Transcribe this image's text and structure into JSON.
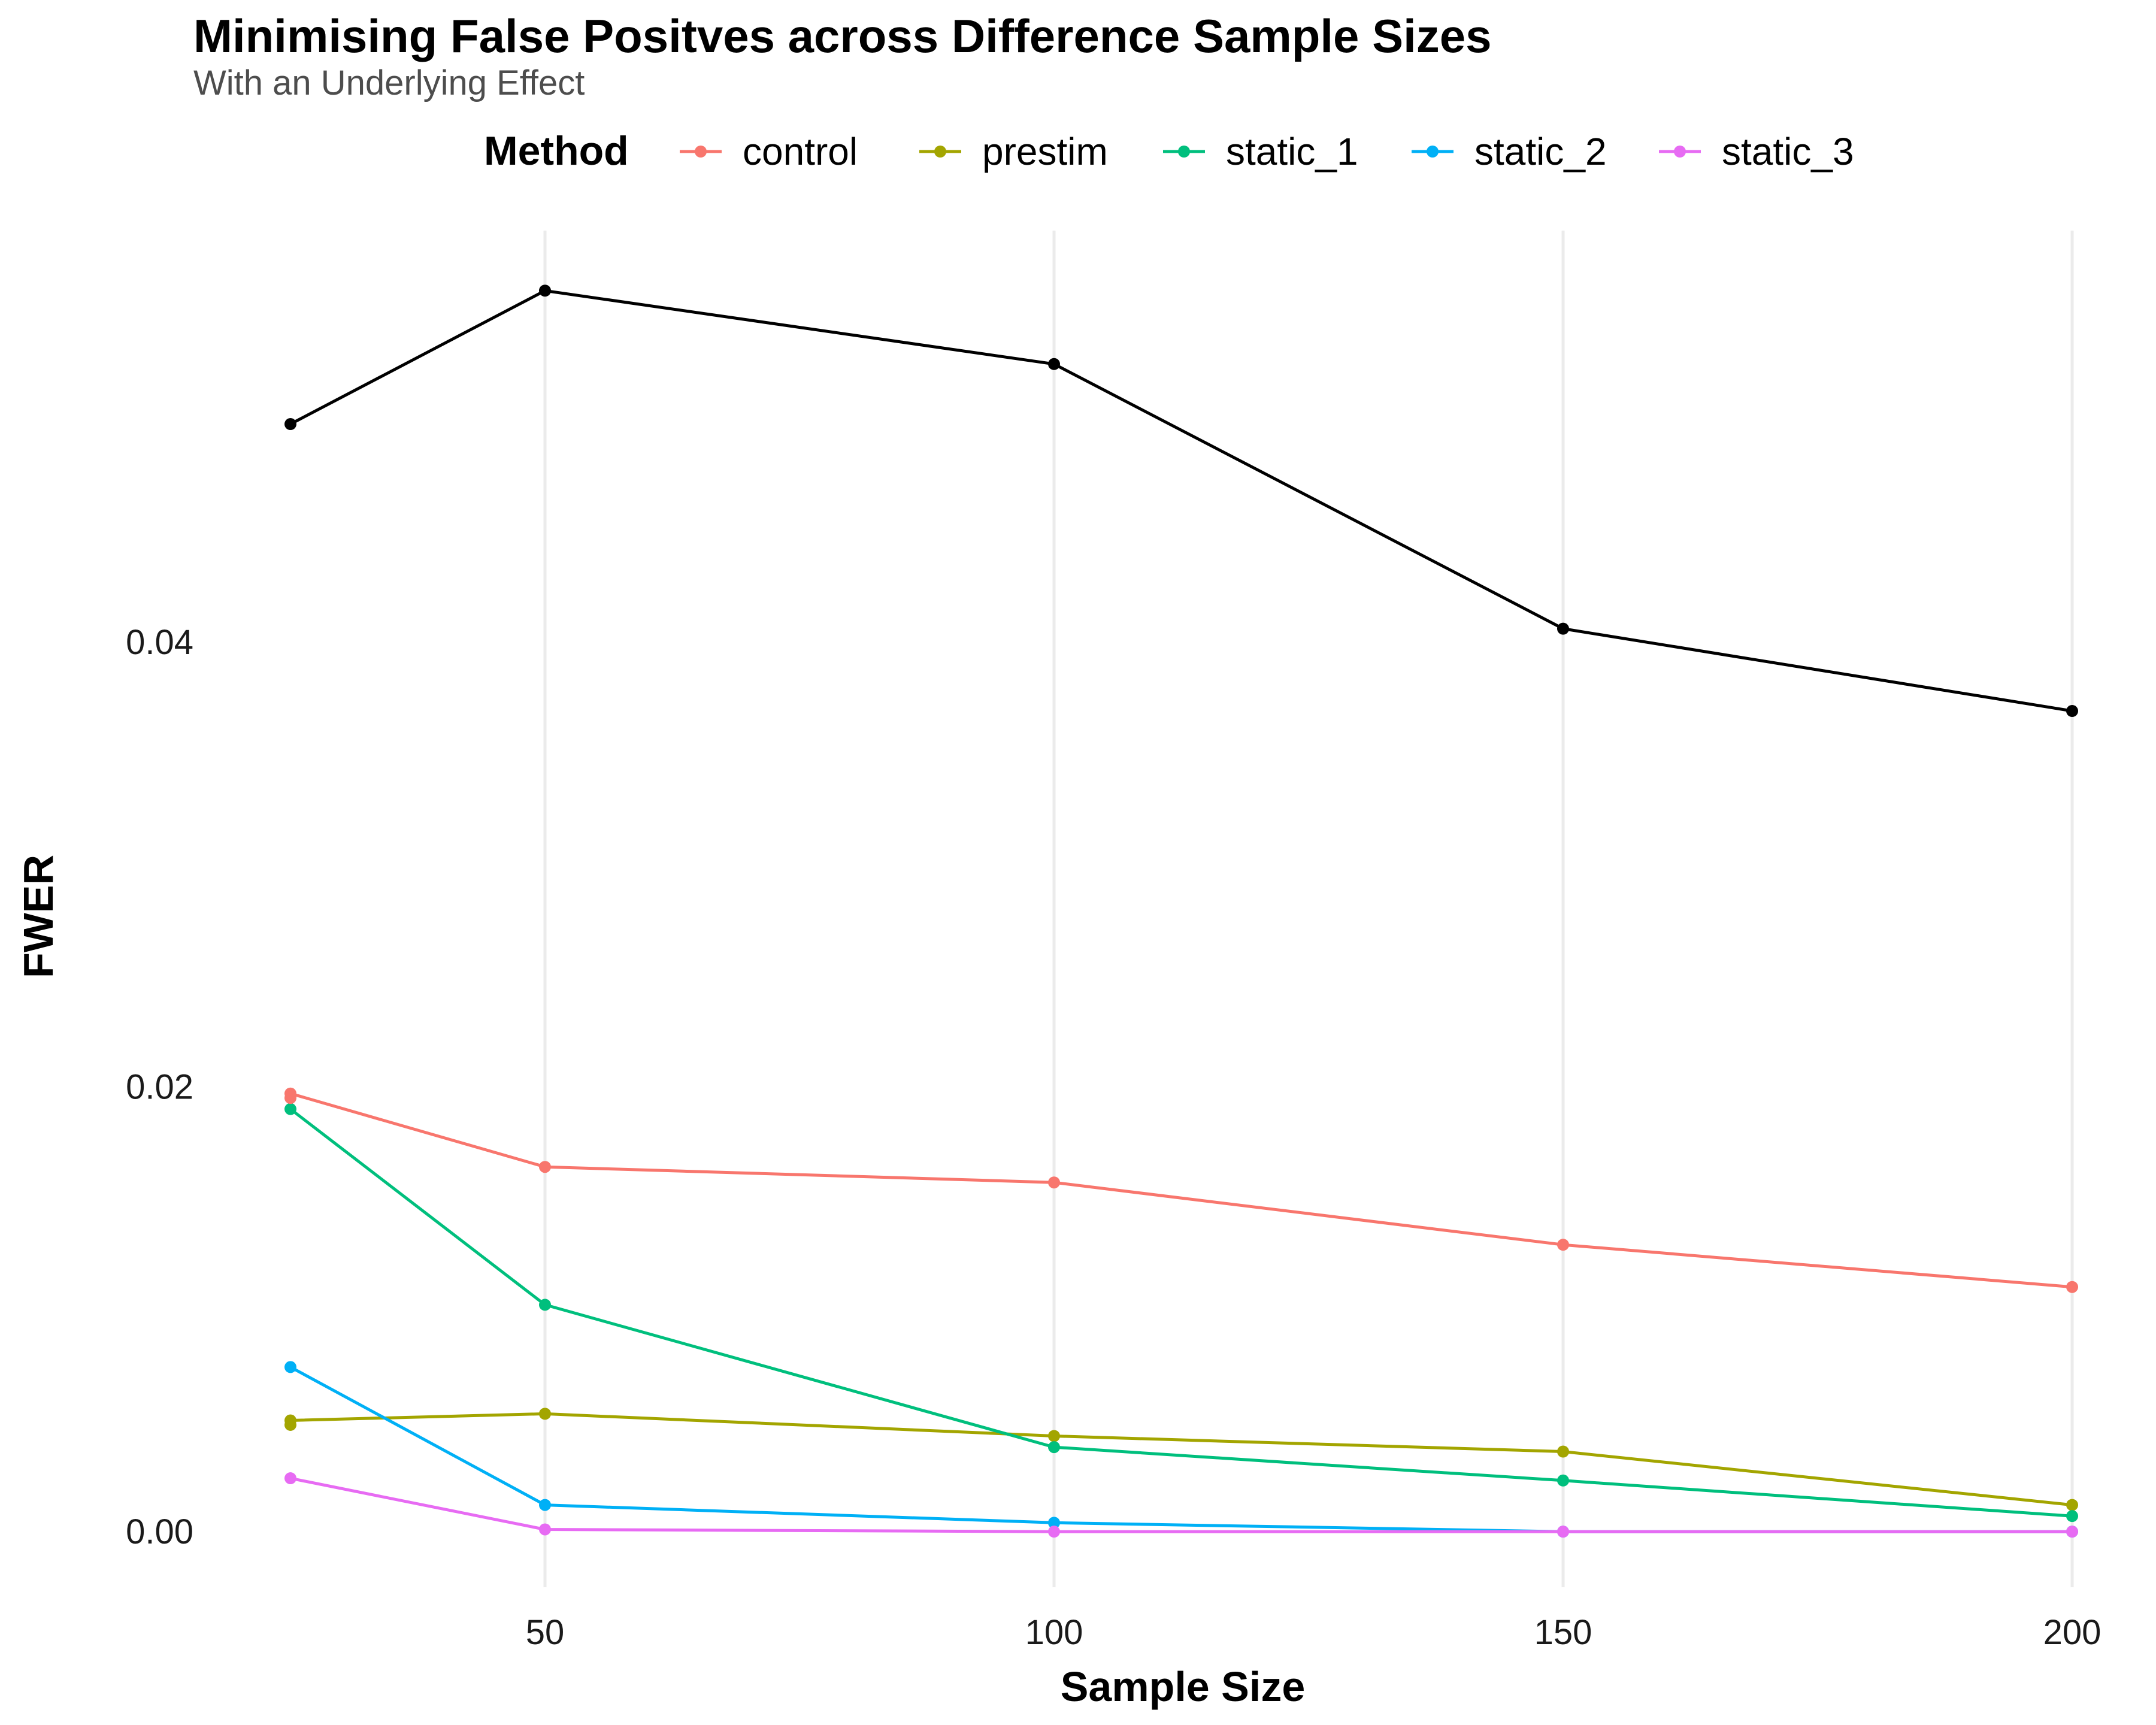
{
  "chart_data": {
    "type": "line",
    "title": "Minimising False Positves across Difference Sample Sizes",
    "subtitle": "With an Underlying Effect",
    "xlabel": "Sample Size",
    "ylabel": "FWER",
    "x_ticks": [
      50,
      100,
      150,
      200
    ],
    "y_ticks": [
      "0.00",
      "0.02",
      "0.04"
    ],
    "x_range": [
      20,
      205
    ],
    "y_range": [
      -0.0025,
      0.0585
    ],
    "grid": "vertical major gridlines only",
    "legend": {
      "title": "Method",
      "placement": "top",
      "entries": [
        "control",
        "prestim",
        "static_1",
        "static_2",
        "static_3"
      ]
    },
    "x": [
      25,
      50,
      100,
      150,
      200
    ],
    "series": [
      {
        "color": "#000000",
        "values": [
          0.0498,
          0.0558,
          0.0525,
          0.0406,
          0.0369
        ]
      },
      {
        "name": "control",
        "color": "#F8766D",
        "values": [
          0.0197,
          0.0164,
          0.0157,
          0.0129,
          0.011
        ]
      },
      {
        "name": "prestim",
        "color": "#A3A500",
        "values": [
          0.005,
          0.0053,
          0.0043,
          0.0036,
          0.0012
        ]
      },
      {
        "name": "static_1",
        "color": "#00BF7D",
        "values": [
          0.019,
          0.0102,
          0.0038,
          0.0023,
          0.0007
        ]
      },
      {
        "name": "static_2",
        "color": "#00B0F6",
        "values": [
          0.0074,
          0.0012,
          0.0004,
          0.0,
          0.0
        ]
      },
      {
        "name": "static_3",
        "color": "#E76BF3",
        "values": [
          0.0024,
          0.0001,
          0.0,
          0.0,
          0.0
        ]
      }
    ],
    "extra_points": [
      {
        "series": "control",
        "x": 25,
        "y": 0.0195
      },
      {
        "series": "prestim",
        "x": 25,
        "y": 0.0048
      }
    ]
  }
}
